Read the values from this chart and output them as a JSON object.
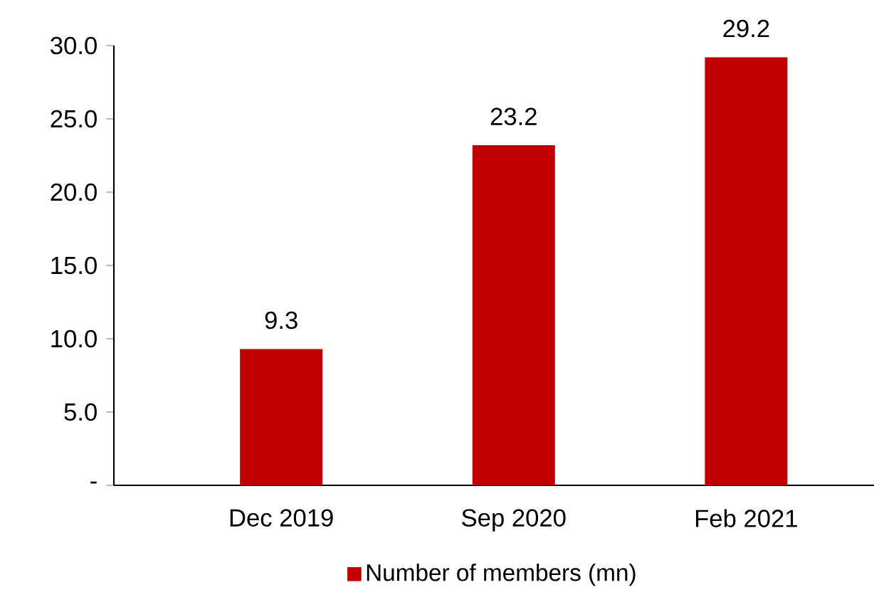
{
  "chart_data": {
    "type": "bar",
    "categories": [
      "Dec 2019",
      "Sep 2020",
      "Feb 2021"
    ],
    "series": [
      {
        "name": "Number of members (mn)",
        "color": "#c00000",
        "values": [
          9.3,
          23.2,
          29.2
        ]
      }
    ],
    "ylim": [
      0,
      30
    ],
    "yticks": [
      {
        "value": 0,
        "label": "-"
      },
      {
        "value": 5,
        "label": "5.0"
      },
      {
        "value": 10,
        "label": "10.0"
      },
      {
        "value": 15,
        "label": "15.0"
      },
      {
        "value": 20,
        "label": "20.0"
      },
      {
        "value": 25,
        "label": "25.0"
      },
      {
        "value": 30,
        "label": "30.0"
      }
    ],
    "data_labels": true,
    "legend": "bottom"
  }
}
